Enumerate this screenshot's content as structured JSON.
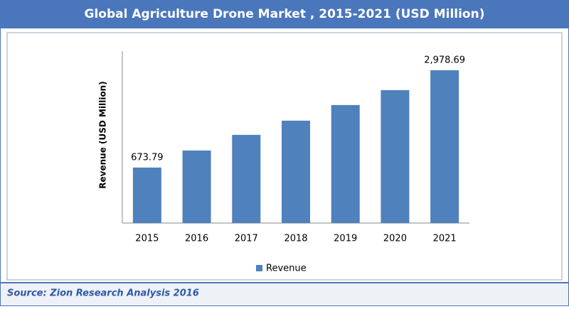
{
  "chart_data": {
    "type": "bar",
    "title": "Global Agriculture Drone Market , 2015-2021 (USD Million)",
    "y_label": "Revenue (USD Million)",
    "source": "Source: Zion Research Analysis 2016",
    "categories": [
      "2015",
      "2016",
      "2017",
      "2018",
      "2019",
      "2020",
      "2021"
    ],
    "series": [
      {
        "name": "Revenue",
        "color": "#4f81bd",
        "values": [
          673.79,
          1078,
          1448,
          1784,
          2154,
          2507,
          2978.69
        ],
        "value_labels": [
          "673.79",
          null,
          null,
          null,
          null,
          null,
          "2,978.69"
        ]
      }
    ],
    "ylim": [
      -640,
      3430
    ]
  }
}
